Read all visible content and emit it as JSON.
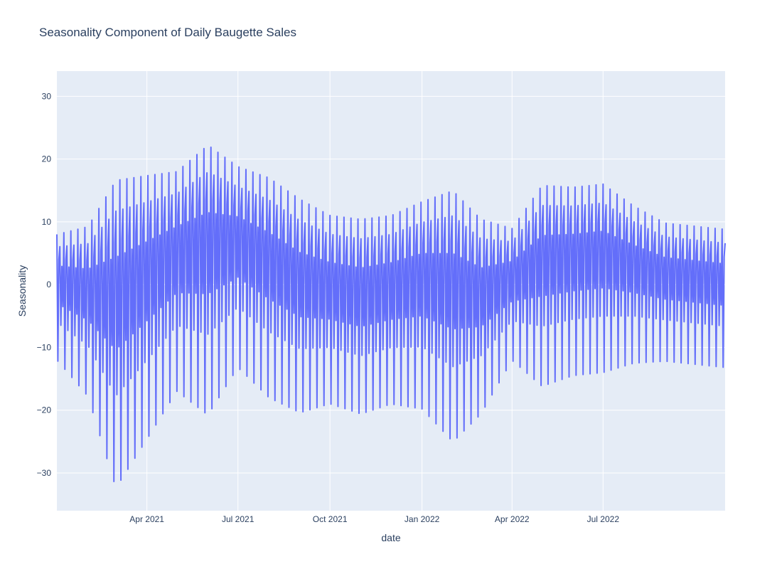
{
  "chart_data": {
    "type": "line",
    "title": "Seasonality Component of Daily Baugette Sales",
    "xlabel": "date",
    "ylabel": "Seasonality",
    "x_range": [
      "2021-01-01",
      "2022-10-31"
    ],
    "ylim": [
      -36,
      34
    ],
    "x_ticks": [
      {
        "date": "2021-04-01",
        "label": "Apr 2021"
      },
      {
        "date": "2021-07-01",
        "label": "Jul 2021"
      },
      {
        "date": "2021-10-01",
        "label": "Oct 2021"
      },
      {
        "date": "2022-01-01",
        "label": "Jan 2022"
      },
      {
        "date": "2022-04-01",
        "label": "Apr 2022"
      },
      {
        "date": "2022-07-01",
        "label": "Jul 2022"
      }
    ],
    "y_ticks": [
      -30,
      -20,
      -10,
      0,
      10,
      20,
      30
    ],
    "y_tick_labels": [
      "−30",
      "−20",
      "−10",
      "0",
      "10",
      "20",
      "30"
    ],
    "grid": true,
    "line_color": "#636efa",
    "plot_bg": "#e5ecf6",
    "series": [
      {
        "name": "",
        "weekly_pattern": [
          8,
          -12,
          4,
          6,
          -6,
          3,
          -3
        ],
        "weekly_envelope": [
          {
            "date": "2021-01-01",
            "amplitude": 1.0
          },
          {
            "date": "2021-02-01",
            "amplitude": 1.35
          },
          {
            "date": "2021-03-01",
            "amplitude": 2.45
          },
          {
            "date": "2021-04-01",
            "amplitude": 2.1
          },
          {
            "date": "2021-05-01",
            "amplitude": 1.75
          },
          {
            "date": "2021-06-01",
            "amplitude": 2.15
          },
          {
            "date": "2021-07-01",
            "amplitude": 1.6
          },
          {
            "date": "2021-08-01",
            "amplitude": 1.75
          },
          {
            "date": "2021-09-01",
            "amplitude": 1.7
          },
          {
            "date": "2021-10-01",
            "amplitude": 1.5
          },
          {
            "date": "2021-11-01",
            "amplitude": 1.55
          },
          {
            "date": "2021-12-01",
            "amplitude": 1.5
          },
          {
            "date": "2022-01-01",
            "amplitude": 1.65
          },
          {
            "date": "2022-02-01",
            "amplitude": 2.0
          },
          {
            "date": "2022-03-01",
            "amplitude": 1.55
          },
          {
            "date": "2022-04-01",
            "amplitude": 1.05
          },
          {
            "date": "2022-05-01",
            "amplitude": 1.6
          },
          {
            "date": "2022-06-01",
            "amplitude": 1.5
          },
          {
            "date": "2022-07-01",
            "amplitude": 1.5
          },
          {
            "date": "2022-08-01",
            "amplitude": 1.25
          },
          {
            "date": "2022-09-01",
            "amplitude": 1.1
          },
          {
            "date": "2022-10-01",
            "amplitude": 1.1
          }
        ],
        "baseline": [
          {
            "date": "2021-01-01",
            "value": 0
          },
          {
            "date": "2021-03-01",
            "value": -3
          },
          {
            "date": "2021-05-01",
            "value": 4
          },
          {
            "date": "2021-07-01",
            "value": 6
          },
          {
            "date": "2021-09-01",
            "value": 0
          },
          {
            "date": "2021-11-01",
            "value": -2
          },
          {
            "date": "2022-01-01",
            "value": 0
          },
          {
            "date": "2022-03-01",
            "value": -2
          },
          {
            "date": "2022-05-01",
            "value": 3
          },
          {
            "date": "2022-07-01",
            "value": 4
          },
          {
            "date": "2022-09-01",
            "value": 1
          },
          {
            "date": "2022-10-31",
            "value": 0
          }
        ]
      }
    ]
  }
}
